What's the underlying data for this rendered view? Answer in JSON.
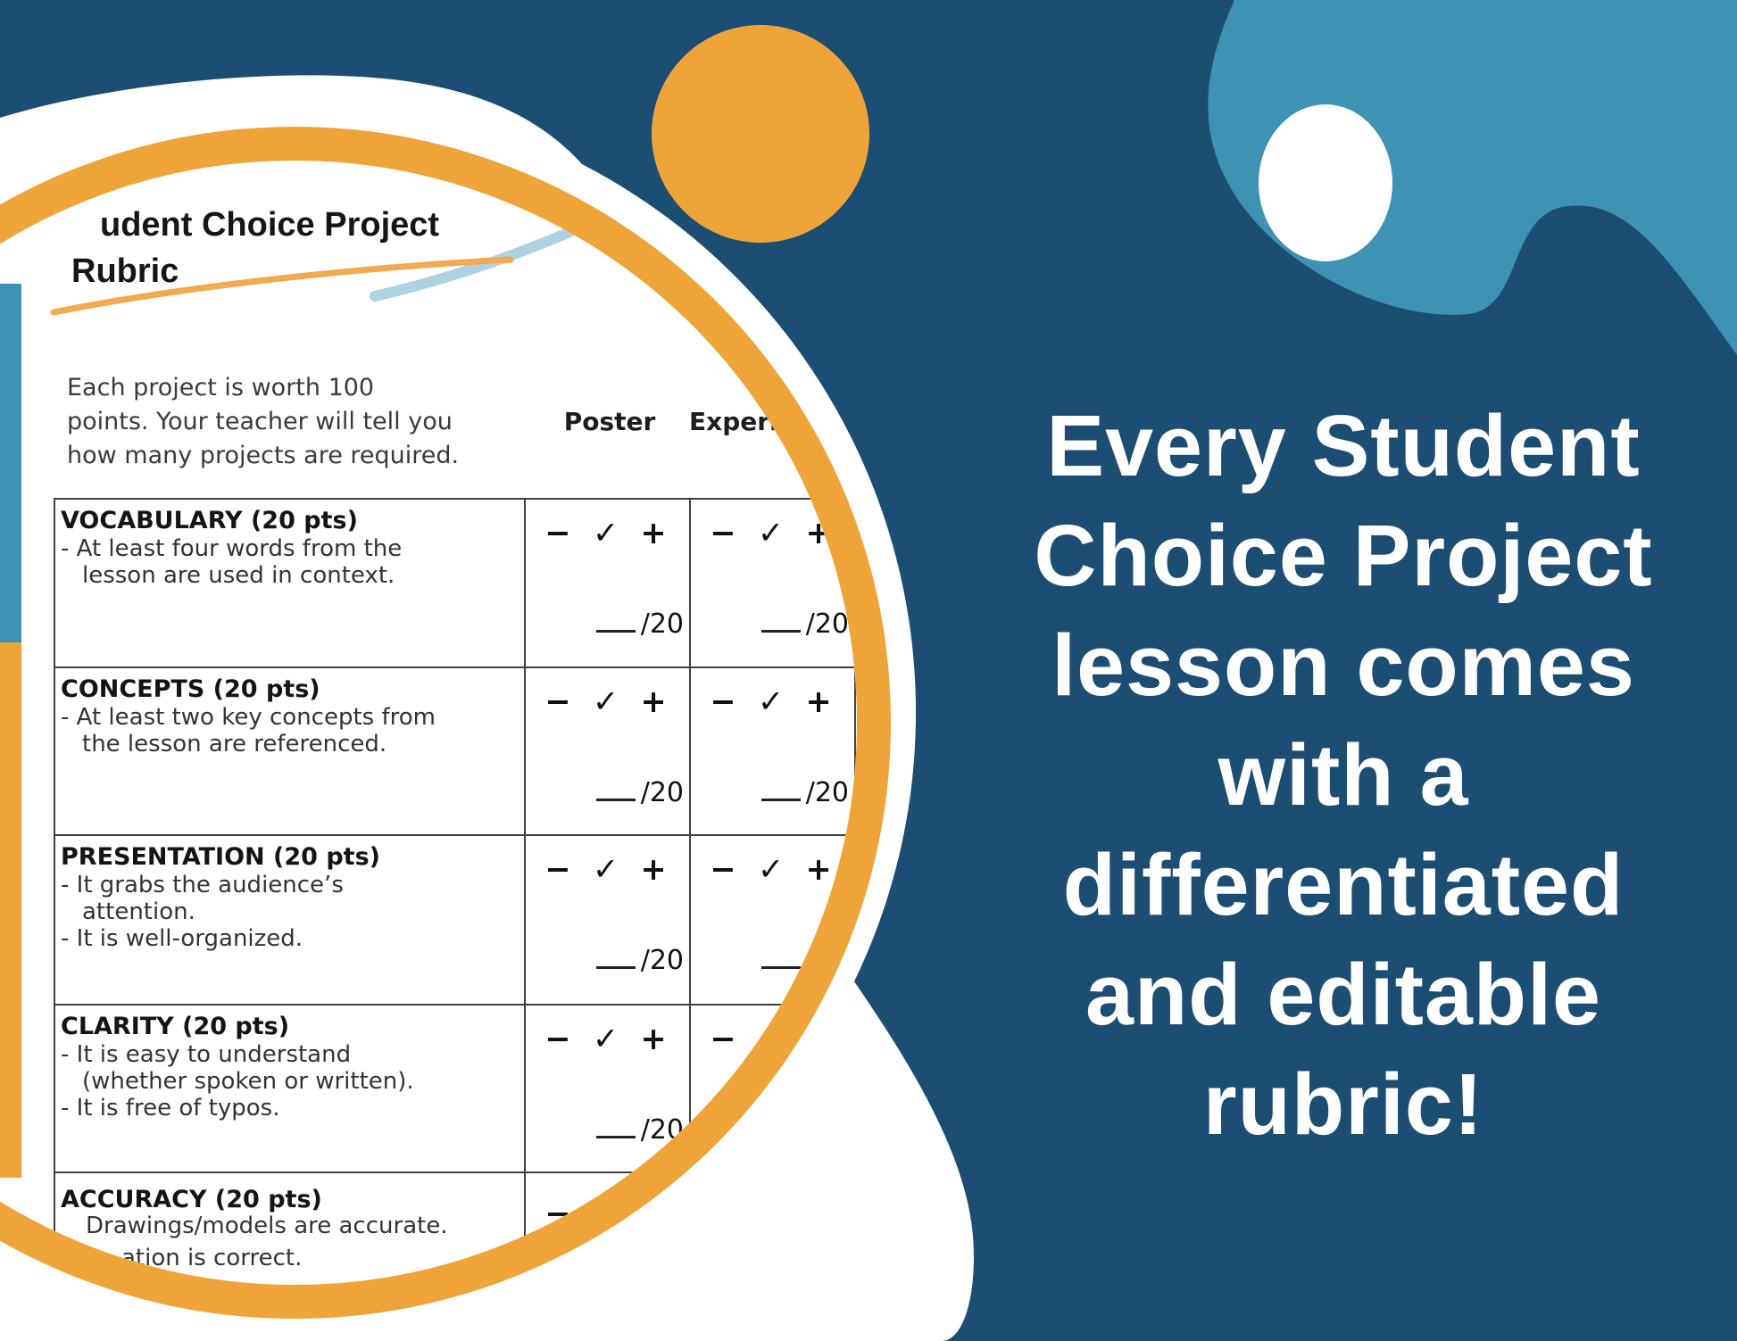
{
  "colors": {
    "navy": "#1C4D73",
    "teal": "#3E93B5",
    "orange": "#EFA43A",
    "white": "#FFFFFF",
    "swoosh_blue": "#AFD2E3",
    "swoosh_orange": "#F2A94F",
    "doc_text": "#222222",
    "table_border": "#3F3F3F"
  },
  "document": {
    "title_line1": "udent Choice Project",
    "title_line2": "Rubric",
    "intro_lines": [
      "Each project is worth 100",
      "points. Your teacher will tell you",
      "how many projects are required."
    ],
    "column_headers": [
      "Poster",
      "Experiment"
    ],
    "symbols": "− ✓ +",
    "score_suffix": "/20",
    "rows": [
      {
        "title": "VOCABULARY (20 pts)",
        "lines": [
          "- At least four words from the",
          "lesson are used in context."
        ]
      },
      {
        "title": "CONCEPTS (20 pts)",
        "lines": [
          "- At least two key concepts from",
          "the lesson are referenced."
        ]
      },
      {
        "title": "PRESENTATION (20 pts)",
        "lines": [
          "- It grabs the audience’s",
          "attention.",
          "- It is well-organized."
        ]
      },
      {
        "title": "CLARITY (20 pts)",
        "lines": [
          "- It is easy to understand",
          "(whether spoken or written).",
          "- It is free of typos."
        ]
      },
      {
        "title": "ACCURACY (20 pts)",
        "lines": [
          "Drawings/models are accurate.",
          "ation is correct."
        ]
      }
    ]
  },
  "headline": {
    "lines": [
      "Every Student",
      "Choice Project",
      "lesson comes",
      "with a",
      "differentiated",
      "and editable",
      "rubric!"
    ]
  }
}
